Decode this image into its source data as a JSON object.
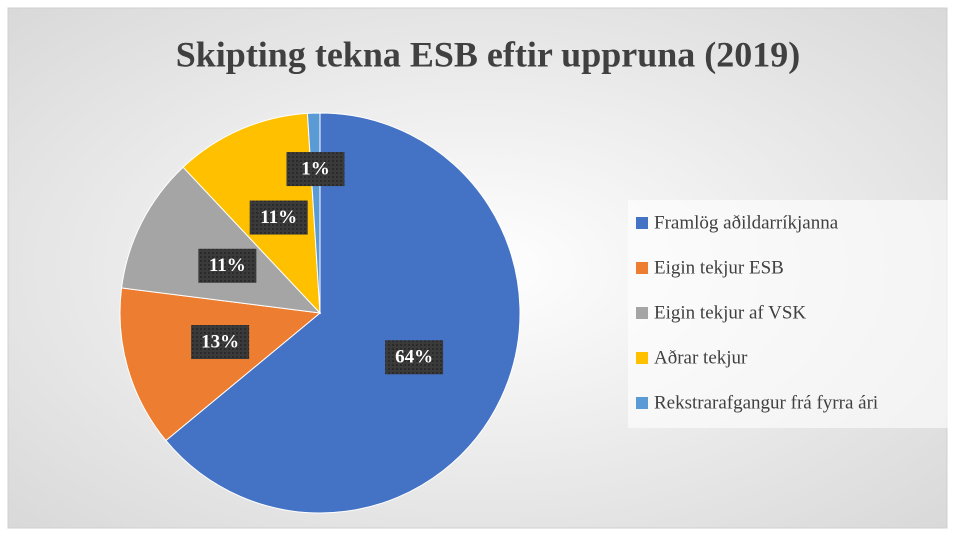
{
  "chart_data": {
    "type": "pie",
    "title": "Skipting tekna ESB eftir uppruna (2019)",
    "categories": [
      "Framlög aðildarríkjanna",
      "Eigin tekjur ESB",
      "Eigin tekjur af VSK",
      "Aðrar tekjur",
      "Rekstrarafgangur frá fyrra ári"
    ],
    "values": [
      64,
      13,
      11,
      11,
      1
    ],
    "value_labels": [
      "64%",
      "13%",
      "11%",
      "11%",
      "1%"
    ],
    "colors": [
      "#4472c4",
      "#ed7d31",
      "#a5a5a5",
      "#ffc000",
      "#5b9bd5"
    ],
    "legend": "right"
  }
}
